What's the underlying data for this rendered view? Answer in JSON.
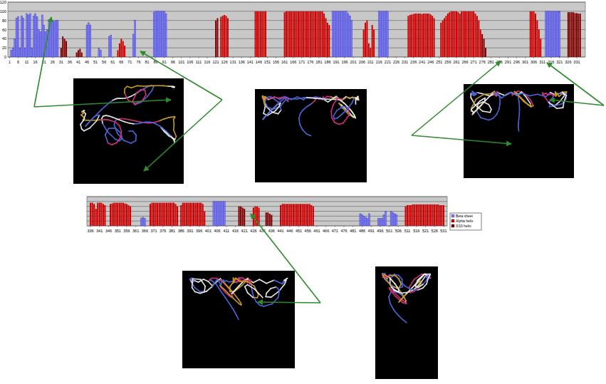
{
  "chart_data": [
    {
      "type": "bar",
      "xlim": [
        0,
        336
      ],
      "ylim": [
        0,
        120
      ],
      "yticks": [
        0,
        20,
        40,
        60,
        80,
        100,
        120
      ],
      "grid": true,
      "xticks": [
        1,
        6,
        11,
        16,
        21,
        26,
        31,
        36,
        41,
        46,
        51,
        56,
        61,
        66,
        71,
        76,
        81,
        86,
        91,
        96,
        101,
        106,
        111,
        116,
        121,
        126,
        131,
        136,
        141,
        146,
        151,
        156,
        161,
        166,
        171,
        176,
        181,
        186,
        191,
        196,
        201,
        206,
        211,
        216,
        221,
        226,
        231,
        236,
        241,
        246,
        251,
        256,
        261,
        266,
        271,
        276,
        281,
        286,
        291,
        296,
        301,
        306,
        311,
        316,
        321,
        326,
        331
      ],
      "series": [
        {
          "color": "#8080ff",
          "x": [
            2,
            3,
            4,
            5,
            6,
            7,
            8,
            9,
            10,
            11,
            12,
            13,
            14,
            15,
            16,
            17,
            18,
            19,
            20,
            21,
            22,
            23,
            24,
            25,
            26,
            27,
            28,
            29,
            46,
            47,
            48,
            53,
            54,
            59,
            60,
            73,
            74,
            85,
            86,
            87,
            88,
            89,
            90,
            91,
            92,
            189,
            190,
            191,
            192,
            193,
            194,
            195,
            196,
            197,
            198,
            199,
            200,
            216,
            217,
            218,
            219,
            220,
            221,
            313,
            314,
            315,
            316,
            317,
            318,
            319,
            320,
            321
          ],
          "values": [
            15,
            20,
            40,
            85,
            88,
            20,
            90,
            85,
            20,
            95,
            92,
            95,
            20,
            90,
            95,
            88,
            60,
            55,
            92,
            70,
            55,
            60,
            82,
            75,
            80,
            78,
            80,
            80,
            70,
            75,
            70,
            20,
            15,
            45,
            48,
            50,
            80,
            98,
            100,
            100,
            100,
            100,
            100,
            100,
            95,
            100,
            100,
            100,
            100,
            100,
            100,
            100,
            100,
            100,
            95,
            90,
            80,
            100,
            100,
            100,
            100,
            100,
            100,
            100,
            100,
            100,
            100,
            100,
            100,
            100,
            100,
            100
          ]
        },
        {
          "color": "#cc0000",
          "x": [
            64,
            65,
            66,
            67,
            68,
            124,
            125,
            126,
            127,
            128,
            144,
            145,
            146,
            147,
            148,
            149,
            150,
            161,
            162,
            163,
            164,
            165,
            166,
            167,
            168,
            169,
            170,
            171,
            172,
            173,
            174,
            175,
            176,
            177,
            178,
            179,
            180,
            181,
            182,
            183,
            184,
            185,
            186,
            187,
            207,
            208,
            209,
            210,
            211,
            212,
            213,
            233,
            234,
            235,
            236,
            237,
            238,
            239,
            240,
            241,
            242,
            243,
            244,
            245,
            246,
            247,
            248,
            252,
            253,
            254,
            255,
            256,
            257,
            258,
            259,
            260,
            261,
            262,
            263,
            264,
            265,
            266,
            267,
            268,
            269,
            270,
            271,
            272,
            273,
            274,
            275,
            304,
            305,
            306,
            307,
            308,
            309,
            310
          ],
          "values": [
            15,
            30,
            40,
            35,
            25,
            88,
            90,
            92,
            90,
            85,
            100,
            100,
            100,
            100,
            100,
            100,
            100,
            98,
            100,
            100,
            100,
            100,
            100,
            100,
            100,
            100,
            100,
            100,
            100,
            100,
            100,
            100,
            100,
            100,
            100,
            100,
            100,
            100,
            100,
            100,
            95,
            85,
            75,
            70,
            60,
            75,
            80,
            30,
            20,
            70,
            60,
            90,
            92,
            93,
            94,
            95,
            95,
            95,
            95,
            94,
            95,
            95,
            95,
            95,
            93,
            90,
            85,
            75,
            80,
            85,
            90,
            95,
            98,
            100,
            100,
            100,
            100,
            98,
            95,
            100,
            100,
            100,
            100,
            100,
            100,
            100,
            100,
            95,
            90,
            80,
            60,
            100,
            100,
            100,
            95,
            80,
            60,
            40
          ]
        },
        {
          "color": "#800000",
          "x": [
            31,
            32,
            33,
            34,
            40,
            41,
            42,
            43,
            121,
            122,
            276,
            277,
            278,
            326,
            327,
            328,
            329,
            330,
            331,
            332,
            333
          ],
          "values": [
            20,
            45,
            40,
            35,
            10,
            15,
            18,
            10,
            80,
            85,
            50,
            40,
            20,
            98,
            98,
            98,
            98,
            96,
            96,
            95,
            95
          ]
        }
      ]
    },
    {
      "type": "bar",
      "xlim": [
        334,
        533
      ],
      "ylim": [
        0,
        120
      ],
      "yticks": [
        0,
        20,
        40,
        60,
        80,
        100,
        120
      ],
      "grid": true,
      "tick_labels": "x",
      "legend": "right",
      "xticks": [
        336,
        341,
        346,
        351,
        356,
        361,
        366,
        371,
        376,
        381,
        386,
        391,
        396,
        401,
        406,
        411,
        416,
        421,
        426,
        431,
        436,
        441,
        446,
        451,
        456,
        461,
        466,
        471,
        476,
        481,
        486,
        491,
        496,
        501,
        506,
        511,
        516,
        521,
        526,
        531
      ],
      "series": [
        {
          "name": "Beta sheet",
          "color": "#8080ff",
          "x": [
            364,
            365,
            366,
            404,
            405,
            406,
            407,
            408,
            409,
            410,
            485,
            486,
            487,
            488,
            489,
            490,
            495,
            496,
            497,
            498,
            499,
            502,
            503,
            504,
            505
          ],
          "values": [
            30,
            35,
            30,
            100,
            100,
            100,
            100,
            100,
            100,
            100,
            50,
            45,
            40,
            35,
            30,
            50,
            30,
            30,
            30,
            45,
            60,
            60,
            55,
            50,
            45
          ]
        },
        {
          "name": "Alpha helix",
          "color": "#cc0000",
          "x": [
            336,
            337,
            338,
            339,
            340,
            341,
            342,
            343,
            344,
            347,
            348,
            349,
            350,
            351,
            352,
            353,
            354,
            355,
            356,
            357,
            358,
            369,
            370,
            371,
            372,
            373,
            374,
            375,
            376,
            377,
            378,
            379,
            380,
            381,
            382,
            383,
            384,
            386,
            387,
            388,
            389,
            390,
            391,
            392,
            393,
            394,
            395,
            396,
            397,
            398,
            399,
            426,
            427,
            428,
            429,
            441,
            442,
            443,
            444,
            445,
            446,
            447,
            448,
            449,
            450,
            451,
            452,
            453,
            454,
            455,
            456,
            457,
            458,
            459,
            510,
            511,
            512,
            513,
            514,
            515,
            516,
            517,
            518,
            519,
            520,
            521,
            522,
            523,
            524,
            525,
            526,
            527,
            528,
            529,
            530,
            531
          ],
          "values": [
            95,
            95,
            90,
            70,
            95,
            95,
            95,
            90,
            85,
            90,
            92,
            95,
            95,
            95,
            95,
            95,
            95,
            92,
            90,
            85,
            80,
            90,
            95,
            95,
            95,
            95,
            95,
            95,
            95,
            95,
            95,
            95,
            95,
            95,
            95,
            90,
            80,
            85,
            95,
            95,
            95,
            95,
            95,
            95,
            95,
            95,
            95,
            95,
            95,
            90,
            60,
            75,
            80,
            80,
            75,
            85,
            90,
            90,
            90,
            90,
            90,
            90,
            90,
            90,
            90,
            90,
            90,
            90,
            90,
            90,
            90,
            90,
            85,
            80,
            80,
            85,
            85,
            85,
            88,
            88,
            88,
            88,
            88,
            88,
            88,
            88,
            88,
            88,
            88,
            88,
            88,
            88,
            88,
            85,
            85,
            85
          ]
        },
        {
          "name": "3/10 helix",
          "color": "#800000",
          "x": [
            418,
            419,
            420,
            421,
            433,
            434,
            435,
            436
          ],
          "values": [
            80,
            80,
            75,
            70,
            55,
            55,
            50,
            45
          ]
        }
      ]
    }
  ]
}
